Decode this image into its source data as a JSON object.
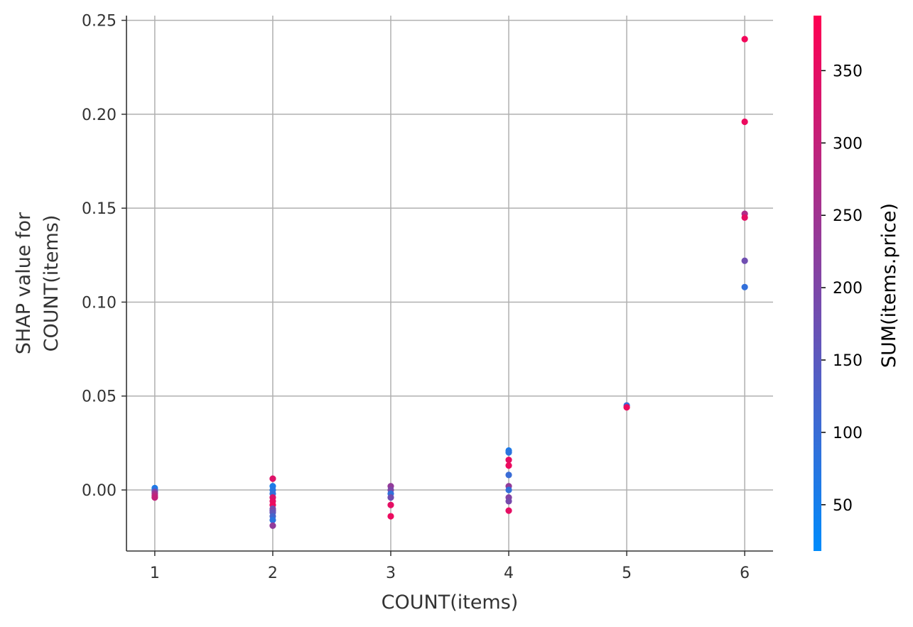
{
  "chart_data": {
    "type": "scatter",
    "title": "",
    "xlabel": "COUNT(items)",
    "ylabel_lines": [
      "SHAP value for",
      "COUNT(items)"
    ],
    "x_ticks": [
      1,
      2,
      3,
      4,
      5,
      6
    ],
    "y_ticks": [
      "0.00",
      "0.05",
      "0.10",
      "0.15",
      "0.20",
      "0.25"
    ],
    "xlim": [
      0.76,
      6.24
    ],
    "ylim": [
      -0.0325,
      0.2525
    ],
    "grid": true,
    "colorbar": {
      "label": "SUM(items.price)",
      "range": [
        18,
        388
      ],
      "ticks": [
        50,
        100,
        150,
        200,
        250,
        300,
        350
      ],
      "color_low": "#008bfb",
      "color_high": "#ff0052"
    },
    "points": [
      {
        "x": 1,
        "y": 0.001,
        "c": 60
      },
      {
        "x": 1,
        "y": 0.0,
        "c": 80
      },
      {
        "x": 1,
        "y": -0.001,
        "c": 200
      },
      {
        "x": 1,
        "y": -0.002,
        "c": 250
      },
      {
        "x": 1,
        "y": -0.003,
        "c": 280
      },
      {
        "x": 1,
        "y": -0.004,
        "c": 300
      },
      {
        "x": 2,
        "y": 0.006,
        "c": 340
      },
      {
        "x": 2,
        "y": 0.002,
        "c": 60
      },
      {
        "x": 2,
        "y": 0.0,
        "c": 70
      },
      {
        "x": 2,
        "y": -0.002,
        "c": 90
      },
      {
        "x": 2,
        "y": -0.004,
        "c": 330
      },
      {
        "x": 2,
        "y": -0.006,
        "c": 350
      },
      {
        "x": 2,
        "y": -0.008,
        "c": 360
      },
      {
        "x": 2,
        "y": -0.01,
        "c": 180
      },
      {
        "x": 2,
        "y": -0.011,
        "c": 200
      },
      {
        "x": 2,
        "y": -0.012,
        "c": 160
      },
      {
        "x": 2,
        "y": -0.014,
        "c": 120
      },
      {
        "x": 2,
        "y": -0.016,
        "c": 80
      },
      {
        "x": 2,
        "y": -0.019,
        "c": 230
      },
      {
        "x": 3,
        "y": 0.002,
        "c": 230
      },
      {
        "x": 3,
        "y": 0.0,
        "c": 200
      },
      {
        "x": 3,
        "y": -0.002,
        "c": 90
      },
      {
        "x": 3,
        "y": -0.004,
        "c": 180
      },
      {
        "x": 3,
        "y": -0.008,
        "c": 350
      },
      {
        "x": 3,
        "y": -0.014,
        "c": 360
      },
      {
        "x": 4,
        "y": 0.021,
        "c": 60
      },
      {
        "x": 4,
        "y": 0.02,
        "c": 80
      },
      {
        "x": 4,
        "y": 0.016,
        "c": 350
      },
      {
        "x": 4,
        "y": 0.013,
        "c": 360
      },
      {
        "x": 4,
        "y": 0.008,
        "c": 100
      },
      {
        "x": 4,
        "y": 0.002,
        "c": 230
      },
      {
        "x": 4,
        "y": 0.0,
        "c": 90
      },
      {
        "x": 4,
        "y": -0.004,
        "c": 210
      },
      {
        "x": 4,
        "y": -0.006,
        "c": 190
      },
      {
        "x": 4,
        "y": -0.011,
        "c": 350
      },
      {
        "x": 5,
        "y": 0.045,
        "c": 100
      },
      {
        "x": 5,
        "y": 0.044,
        "c": 360
      },
      {
        "x": 6,
        "y": 0.24,
        "c": 370
      },
      {
        "x": 6,
        "y": 0.196,
        "c": 360
      },
      {
        "x": 6,
        "y": 0.147,
        "c": 270
      },
      {
        "x": 6,
        "y": 0.145,
        "c": 350
      },
      {
        "x": 6,
        "y": 0.122,
        "c": 180
      },
      {
        "x": 6,
        "y": 0.108,
        "c": 90
      }
    ]
  }
}
